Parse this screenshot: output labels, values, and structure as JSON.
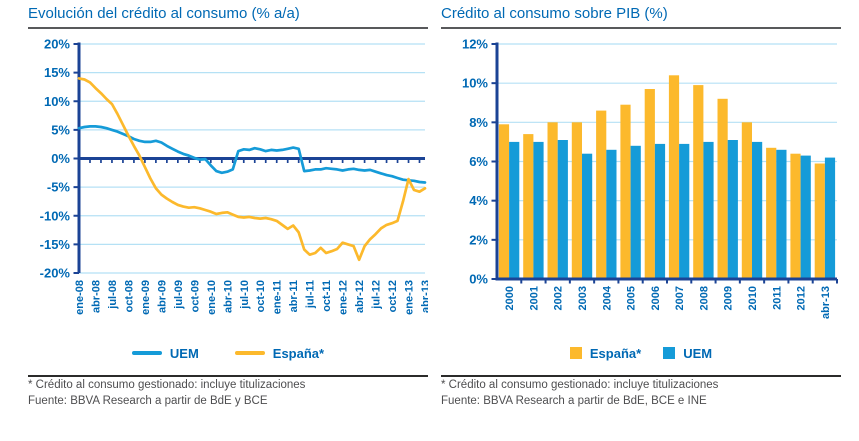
{
  "colors": {
    "title_blue": "#0069b4",
    "label_blue": "#0069b4",
    "axis_navy": "#1b4395",
    "grid_light_blue": "#b5e1f5",
    "uem_blue": "#159bd8",
    "espana_yellow": "#fcb92c",
    "footnote_gray": "#4e4e50",
    "rule_gray": "#58595b"
  },
  "chart_data": [
    {
      "type": "line",
      "title": "Evolución del crédito al consumo (% a/a)",
      "x_frequency": "monthly",
      "x_range": [
        "ene-08",
        "abr-13"
      ],
      "x_tick_labels": [
        "ene-08",
        "abr-08",
        "jul-08",
        "oct-08",
        "ene-09",
        "abr-09",
        "jul-09",
        "oct-09",
        "ene-10",
        "abr-10",
        "jul-10",
        "oct-10",
        "ene-11",
        "abr-11",
        "jul-11",
        "oct-11",
        "ene-12",
        "abr-12",
        "jul-12",
        "oct-12",
        "ene-13",
        "abr-13"
      ],
      "ylim": [
        -20,
        20
      ],
      "y_ticks": [
        20,
        15,
        10,
        5,
        0,
        -5,
        -10,
        -15,
        -20
      ],
      "grid": true,
      "legend_position": "bottom",
      "series": [
        {
          "name": "UEM",
          "color": "#159bd8",
          "values": [
            5.3,
            5.5,
            5.6,
            5.6,
            5.5,
            5.3,
            5.0,
            4.7,
            4.3,
            3.9,
            3.4,
            3.1,
            2.9,
            2.9,
            3.1,
            2.8,
            2.2,
            1.7,
            1.2,
            0.8,
            0.5,
            0.1,
            -0.2,
            -0.1,
            -1.2,
            -2.2,
            -2.5,
            -2.3,
            -1.9,
            1.3,
            1.6,
            1.5,
            1.8,
            1.6,
            1.3,
            1.5,
            1.4,
            1.5,
            1.7,
            1.9,
            1.7,
            -2.2,
            -2.1,
            -1.9,
            -1.9,
            -1.7,
            -1.8,
            -1.9,
            -2.1,
            -1.9,
            -1.8,
            -2.0,
            -2.1,
            -2.0,
            -2.3,
            -2.6,
            -2.9,
            -3.1,
            -3.4,
            -3.7,
            -3.8,
            -3.9,
            -4.1,
            -4.2
          ]
        },
        {
          "name": "España*",
          "color": "#fcb92c",
          "values": [
            14.0,
            13.8,
            13.3,
            12.3,
            11.4,
            10.4,
            9.5,
            7.8,
            5.9,
            4.0,
            2.2,
            0.5,
            -1.5,
            -3.5,
            -5.2,
            -6.3,
            -7.0,
            -7.6,
            -8.1,
            -8.4,
            -8.6,
            -8.5,
            -8.7,
            -9.0,
            -9.3,
            -9.7,
            -9.5,
            -9.4,
            -9.8,
            -10.2,
            -10.3,
            -10.2,
            -10.4,
            -10.5,
            -10.4,
            -10.6,
            -10.9,
            -11.6,
            -12.3,
            -11.7,
            -12.9,
            -15.9,
            -16.8,
            -16.5,
            -15.6,
            -16.5,
            -16.2,
            -15.8,
            -14.7,
            -15.0,
            -15.3,
            -17.7,
            -15.3,
            -14.1,
            -13.2,
            -12.2,
            -11.6,
            -11.3,
            -10.9,
            -7.5,
            -3.6,
            -5.5,
            -5.8,
            -5.2
          ]
        }
      ]
    },
    {
      "type": "bar",
      "title": "Crédito al consumo sobre PIB (%)",
      "categories": [
        "2000",
        "2001",
        "2002",
        "2003",
        "2004",
        "2005",
        "2006",
        "2007",
        "2008",
        "2009",
        "2010",
        "2011",
        "2012",
        "abr-13"
      ],
      "ylim": [
        0,
        12
      ],
      "y_ticks": [
        12,
        10,
        8,
        6,
        4,
        2,
        0
      ],
      "grid": true,
      "legend_position": "bottom",
      "series": [
        {
          "name": "España*",
          "color": "#fcb92c",
          "values": [
            7.9,
            7.4,
            8.0,
            8.0,
            8.6,
            8.9,
            9.7,
            10.4,
            9.9,
            9.2,
            8.0,
            6.7,
            6.4,
            5.9
          ]
        },
        {
          "name": "UEM",
          "color": "#159bd8",
          "values": [
            7.0,
            7.0,
            7.1,
            6.4,
            6.6,
            6.8,
            6.9,
            6.9,
            7.0,
            7.1,
            7.0,
            6.6,
            6.3,
            6.2
          ]
        }
      ]
    }
  ],
  "panels": {
    "left": {
      "footnote1": "* Crédito al consumo gestionado: incluye titulizaciones",
      "footnote2": "Fuente: BBVA Research a partir de BdE y BCE"
    },
    "right": {
      "footnote1": "* Crédito al consumo gestionado: incluye titulizaciones",
      "footnote2": "Fuente: BBVA Research a partir de BdE, BCE e INE"
    }
  }
}
